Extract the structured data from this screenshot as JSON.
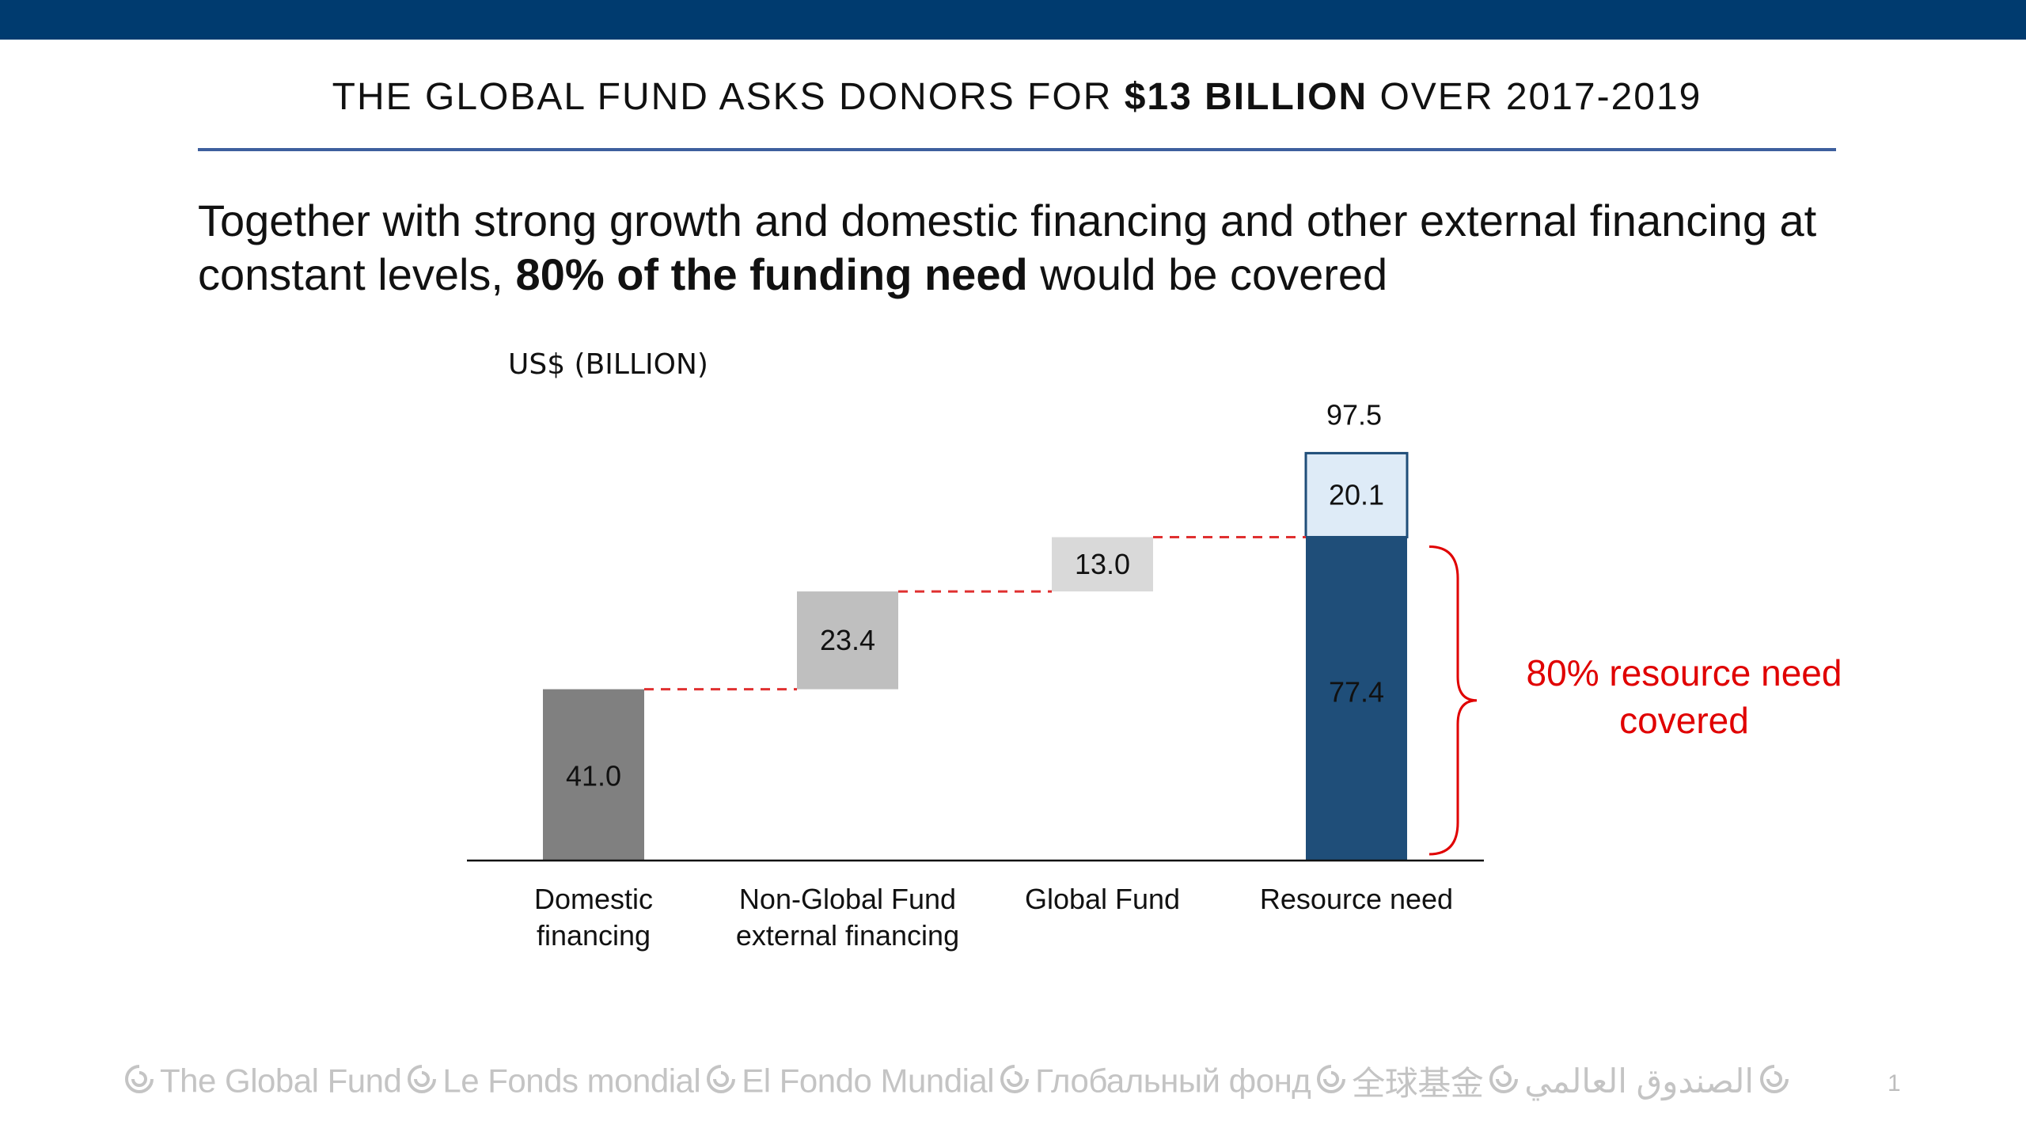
{
  "slide": {
    "title_pre": "THE GLOBAL FUND ASKS DONORS FOR ",
    "title_bold": "$13 BILLION",
    "title_post": " OVER 2017-2019",
    "subtitle_pre": "Together with strong growth and domestic financing and other external financing at constant levels, ",
    "subtitle_bold": "80% of the funding need",
    "subtitle_post": " would be covered",
    "page_number": "1"
  },
  "footer": {
    "names": [
      "The Global Fund",
      "Le Fonds mondial",
      "El Fondo Mundial",
      "Глобальный фонд",
      "全球基金",
      "الصندوق العالمي"
    ],
    "color": "#c4c4c4"
  },
  "chart_data": {
    "type": "bar",
    "subtype": "waterfall",
    "ylabel": "US$ (BILLION)",
    "categories": [
      [
        "Domestic",
        "financing"
      ],
      [
        "Non-Global Fund",
        "external financing"
      ],
      [
        "Global Fund"
      ],
      [
        "Resource need"
      ]
    ],
    "steps": [
      {
        "value": 41.0,
        "base": 0,
        "label": "41.0",
        "color": "#808080",
        "label_color": "#111111"
      },
      {
        "value": 23.4,
        "base": 41.0,
        "label": "23.4",
        "color": "#bfbfbf",
        "label_color": "#111111"
      },
      {
        "value": 13.0,
        "base": 64.4,
        "label": "13.0",
        "color": "#d9d9d9",
        "label_color": "#111111"
      }
    ],
    "total": {
      "value": 97.5,
      "label": "97.5",
      "segments": [
        {
          "value": 77.4,
          "label": "77.4",
          "color": "#1f4e79",
          "label_color": "#111111"
        },
        {
          "value": 20.1,
          "label": "20.1",
          "color": "#deebf7",
          "border": "#1f4e79",
          "label_color": "#111111"
        }
      ]
    },
    "annotation": {
      "text": [
        "80% resource need",
        "covered"
      ],
      "color": "#e00000"
    },
    "connector_color": "#e03030",
    "ylim": [
      0,
      100
    ]
  }
}
